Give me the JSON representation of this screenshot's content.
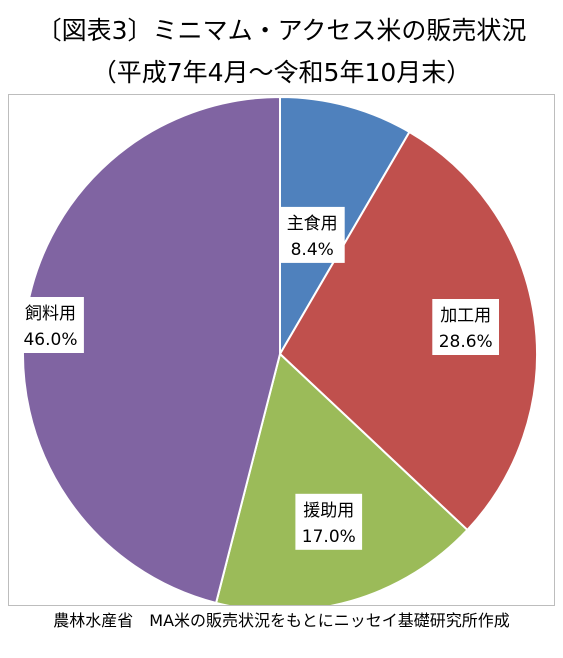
{
  "title_line1": "〔図表3〕ミニマム・アクセス米の販売状況",
  "title_line2": "（平成7年4月～令和5年10月末）",
  "source": "農林水産省　MA米の販売状況をもとにニッセイ基礎研究所作成",
  "chart_data": {
    "type": "pie",
    "start": "12 o'clock",
    "direction": "clockwise",
    "slices": [
      {
        "label": "主食用",
        "value_text": "8.4%",
        "value": 8.4,
        "color": "#4F81BD"
      },
      {
        "label": "加工用",
        "value_text": "28.6%",
        "value": 28.6,
        "color": "#C0504D"
      },
      {
        "label": "援助用",
        "value_text": "17.0%",
        "value": 17.0,
        "color": "#9BBB59"
      },
      {
        "label": "飼料用",
        "value_text": "46.0%",
        "value": 46.0,
        "color": "#8064A2"
      }
    ]
  }
}
